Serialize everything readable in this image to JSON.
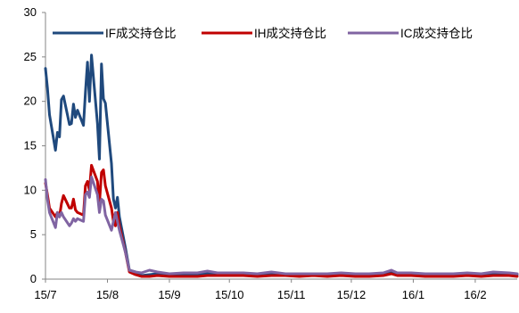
{
  "chart_data": {
    "type": "line",
    "title": "",
    "xlabel": "",
    "ylabel": "",
    "ylim": [
      0,
      30
    ],
    "yticks": [
      0,
      5,
      10,
      15,
      20,
      25,
      30
    ],
    "xlim": [
      "2015-07-01",
      "2016-02-22"
    ],
    "xticks": [
      {
        "label": "15/7",
        "date": "2015-07-01"
      },
      {
        "label": "15/8",
        "date": "2015-08-01"
      },
      {
        "label": "15/9",
        "date": "2015-09-01"
      },
      {
        "label": "15/10",
        "date": "2015-10-01"
      },
      {
        "label": "15/11",
        "date": "2015-11-01"
      },
      {
        "label": "15/12",
        "date": "2015-12-01"
      },
      {
        "label": "16/1",
        "date": "2016-01-01"
      },
      {
        "label": "16/2",
        "date": "2016-02-01"
      }
    ],
    "legend_position": "top",
    "grid": false,
    "series": [
      {
        "name": "IF成交持仓比",
        "color": "#1f497d",
        "points": [
          [
            "2015-07-01",
            23.7
          ],
          [
            "2015-07-02",
            21.5
          ],
          [
            "2015-07-03",
            18.5
          ],
          [
            "2015-07-06",
            14.5
          ],
          [
            "2015-07-07",
            16.5
          ],
          [
            "2015-07-08",
            16.0
          ],
          [
            "2015-07-09",
            20.2
          ],
          [
            "2015-07-10",
            20.6
          ],
          [
            "2015-07-13",
            17.4
          ],
          [
            "2015-07-14",
            17.5
          ],
          [
            "2015-07-15",
            19.7
          ],
          [
            "2015-07-16",
            18.2
          ],
          [
            "2015-07-17",
            19.0
          ],
          [
            "2015-07-20",
            17.3
          ],
          [
            "2015-07-21",
            21.0
          ],
          [
            "2015-07-22",
            24.4
          ],
          [
            "2015-07-23",
            20.0
          ],
          [
            "2015-07-24",
            25.2
          ],
          [
            "2015-07-27",
            17.5
          ],
          [
            "2015-07-28",
            13.5
          ],
          [
            "2015-07-29",
            24.2
          ],
          [
            "2015-07-30",
            20.3
          ],
          [
            "2015-07-31",
            19.8
          ],
          [
            "2015-08-03",
            13.0
          ],
          [
            "2015-08-04",
            9.0
          ],
          [
            "2015-08-05",
            8.0
          ],
          [
            "2015-08-06",
            9.2
          ],
          [
            "2015-08-07",
            7.0
          ],
          [
            "2015-08-10",
            3.5
          ],
          [
            "2015-08-12",
            1.0
          ],
          [
            "2015-08-15",
            0.8
          ],
          [
            "2015-08-18",
            0.4
          ],
          [
            "2015-08-22",
            0.5
          ],
          [
            "2015-08-26",
            0.6
          ],
          [
            "2015-09-01",
            0.5
          ],
          [
            "2015-09-08",
            0.5
          ],
          [
            "2015-09-15",
            0.6
          ],
          [
            "2015-09-20",
            0.6
          ],
          [
            "2015-09-25",
            0.6
          ],
          [
            "2015-10-01",
            0.6
          ],
          [
            "2015-10-08",
            0.6
          ],
          [
            "2015-10-15",
            0.5
          ],
          [
            "2015-10-22",
            0.6
          ],
          [
            "2015-10-29",
            0.6
          ],
          [
            "2015-11-05",
            0.5
          ],
          [
            "2015-11-12",
            0.6
          ],
          [
            "2015-11-19",
            0.5
          ],
          [
            "2015-11-26",
            0.6
          ],
          [
            "2015-12-03",
            0.5
          ],
          [
            "2015-12-10",
            0.5
          ],
          [
            "2015-12-17",
            0.6
          ],
          [
            "2015-12-21",
            0.8
          ],
          [
            "2015-12-24",
            0.6
          ],
          [
            "2015-12-31",
            0.6
          ],
          [
            "2016-01-07",
            0.5
          ],
          [
            "2016-01-14",
            0.5
          ],
          [
            "2016-01-21",
            0.5
          ],
          [
            "2016-01-28",
            0.6
          ],
          [
            "2016-02-04",
            0.5
          ],
          [
            "2016-02-10",
            0.6
          ],
          [
            "2016-02-18",
            0.6
          ],
          [
            "2016-02-22",
            0.5
          ]
        ]
      },
      {
        "name": "IH成交持仓比",
        "color": "#c00000",
        "points": [
          [
            "2015-07-01",
            10.8
          ],
          [
            "2015-07-02",
            9.5
          ],
          [
            "2015-07-03",
            8.0
          ],
          [
            "2015-07-06",
            7.0
          ],
          [
            "2015-07-07",
            7.5
          ],
          [
            "2015-07-08",
            7.0
          ],
          [
            "2015-07-09",
            8.5
          ],
          [
            "2015-07-10",
            9.4
          ],
          [
            "2015-07-13",
            8.0
          ],
          [
            "2015-07-14",
            8.0
          ],
          [
            "2015-07-15",
            9.0
          ],
          [
            "2015-07-16",
            7.8
          ],
          [
            "2015-07-17",
            7.5
          ],
          [
            "2015-07-20",
            7.2
          ],
          [
            "2015-07-21",
            10.5
          ],
          [
            "2015-07-22",
            11.0
          ],
          [
            "2015-07-23",
            10.0
          ],
          [
            "2015-07-24",
            12.8
          ],
          [
            "2015-07-27",
            11.0
          ],
          [
            "2015-07-28",
            8.5
          ],
          [
            "2015-07-29",
            12.0
          ],
          [
            "2015-07-30",
            12.3
          ],
          [
            "2015-07-31",
            10.5
          ],
          [
            "2015-08-03",
            8.0
          ],
          [
            "2015-08-04",
            6.5
          ],
          [
            "2015-08-05",
            6.0
          ],
          [
            "2015-08-06",
            7.5
          ],
          [
            "2015-08-07",
            6.0
          ],
          [
            "2015-08-10",
            3.0
          ],
          [
            "2015-08-12",
            0.8
          ],
          [
            "2015-08-15",
            0.5
          ],
          [
            "2015-08-18",
            0.3
          ],
          [
            "2015-08-22",
            0.3
          ],
          [
            "2015-08-26",
            0.4
          ],
          [
            "2015-09-01",
            0.3
          ],
          [
            "2015-09-08",
            0.3
          ],
          [
            "2015-09-15",
            0.3
          ],
          [
            "2015-09-20",
            0.4
          ],
          [
            "2015-09-25",
            0.4
          ],
          [
            "2015-10-01",
            0.4
          ],
          [
            "2015-10-08",
            0.4
          ],
          [
            "2015-10-15",
            0.3
          ],
          [
            "2015-10-22",
            0.4
          ],
          [
            "2015-10-29",
            0.4
          ],
          [
            "2015-11-05",
            0.3
          ],
          [
            "2015-11-12",
            0.4
          ],
          [
            "2015-11-19",
            0.3
          ],
          [
            "2015-11-26",
            0.4
          ],
          [
            "2015-12-03",
            0.3
          ],
          [
            "2015-12-10",
            0.3
          ],
          [
            "2015-12-17",
            0.4
          ],
          [
            "2015-12-21",
            0.6
          ],
          [
            "2015-12-24",
            0.4
          ],
          [
            "2015-12-31",
            0.4
          ],
          [
            "2016-01-07",
            0.3
          ],
          [
            "2016-01-14",
            0.3
          ],
          [
            "2016-01-21",
            0.3
          ],
          [
            "2016-01-28",
            0.4
          ],
          [
            "2016-02-04",
            0.3
          ],
          [
            "2016-02-10",
            0.4
          ],
          [
            "2016-02-18",
            0.4
          ],
          [
            "2016-02-22",
            0.3
          ]
        ]
      },
      {
        "name": "IC成交持仓比",
        "color": "#8064a2",
        "points": [
          [
            "2015-07-01",
            11.2
          ],
          [
            "2015-07-02",
            9.0
          ],
          [
            "2015-07-03",
            7.5
          ],
          [
            "2015-07-06",
            5.8
          ],
          [
            "2015-07-07",
            7.5
          ],
          [
            "2015-07-08",
            7.0
          ],
          [
            "2015-07-09",
            7.5
          ],
          [
            "2015-07-10",
            7.0
          ],
          [
            "2015-07-13",
            6.0
          ],
          [
            "2015-07-14",
            6.3
          ],
          [
            "2015-07-15",
            6.8
          ],
          [
            "2015-07-16",
            6.5
          ],
          [
            "2015-07-17",
            6.8
          ],
          [
            "2015-07-20",
            6.5
          ],
          [
            "2015-07-21",
            9.5
          ],
          [
            "2015-07-22",
            9.8
          ],
          [
            "2015-07-23",
            9.2
          ],
          [
            "2015-07-24",
            11.5
          ],
          [
            "2015-07-27",
            9.5
          ],
          [
            "2015-07-28",
            7.5
          ],
          [
            "2015-07-29",
            9.0
          ],
          [
            "2015-07-30",
            8.8
          ],
          [
            "2015-07-31",
            7.2
          ],
          [
            "2015-08-03",
            5.5
          ],
          [
            "2015-08-04",
            6.5
          ],
          [
            "2015-08-05",
            7.5
          ],
          [
            "2015-08-06",
            6.5
          ],
          [
            "2015-08-07",
            5.5
          ],
          [
            "2015-08-10",
            3.0
          ],
          [
            "2015-08-12",
            1.0
          ],
          [
            "2015-08-15",
            0.8
          ],
          [
            "2015-08-18",
            0.7
          ],
          [
            "2015-08-22",
            1.0
          ],
          [
            "2015-08-26",
            0.8
          ],
          [
            "2015-09-01",
            0.6
          ],
          [
            "2015-09-08",
            0.7
          ],
          [
            "2015-09-15",
            0.7
          ],
          [
            "2015-09-20",
            0.9
          ],
          [
            "2015-09-25",
            0.7
          ],
          [
            "2015-10-01",
            0.7
          ],
          [
            "2015-10-08",
            0.7
          ],
          [
            "2015-10-15",
            0.6
          ],
          [
            "2015-10-22",
            0.8
          ],
          [
            "2015-10-29",
            0.6
          ],
          [
            "2015-11-05",
            0.6
          ],
          [
            "2015-11-12",
            0.6
          ],
          [
            "2015-11-19",
            0.6
          ],
          [
            "2015-11-26",
            0.7
          ],
          [
            "2015-12-03",
            0.6
          ],
          [
            "2015-12-10",
            0.6
          ],
          [
            "2015-12-17",
            0.7
          ],
          [
            "2015-12-21",
            1.0
          ],
          [
            "2015-12-24",
            0.7
          ],
          [
            "2015-12-31",
            0.7
          ],
          [
            "2016-01-07",
            0.6
          ],
          [
            "2016-01-14",
            0.6
          ],
          [
            "2016-01-21",
            0.6
          ],
          [
            "2016-01-28",
            0.7
          ],
          [
            "2016-02-04",
            0.6
          ],
          [
            "2016-02-10",
            0.8
          ],
          [
            "2016-02-18",
            0.7
          ],
          [
            "2016-02-22",
            0.6
          ]
        ]
      }
    ]
  }
}
